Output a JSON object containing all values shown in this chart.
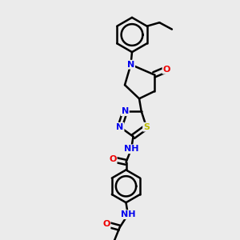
{
  "bg_color": "#ebebeb",
  "bond_color": "#000000",
  "bond_width": 1.8,
  "atom_colors": {
    "N": "#0000ee",
    "O": "#ee0000",
    "S": "#bbbb00",
    "C": "#000000",
    "H": "#4a9090"
  },
  "font_size": 8.0,
  "fig_width": 3.0,
  "fig_height": 3.0,
  "dpi": 100
}
